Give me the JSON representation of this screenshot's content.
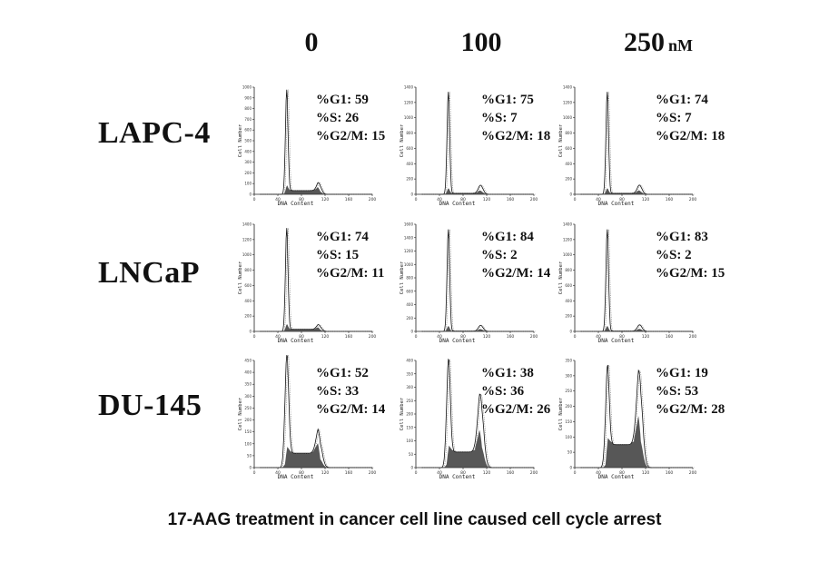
{
  "chart_data": {
    "type": "grid of histograms (flow cytometry DNA content)",
    "caption": "17-AAG treatment in cancer cell line caused cell cycle arrest",
    "columns": [
      {
        "dose": "0",
        "unit": ""
      },
      {
        "dose": "100",
        "unit": ""
      },
      {
        "dose": "250",
        "unit": "nM"
      }
    ],
    "xlabel": "DNA Content",
    "ylabel": "Cell Number",
    "rows": [
      {
        "cell_line": "LAPC-4",
        "panels": [
          {
            "G1": "59",
            "S": "26",
            "G2M": "15",
            "yticks": [
              "1000",
              "900",
              "800",
              "700",
              "600",
              "500",
              "400",
              "300",
              "200",
              "100",
              "0"
            ],
            "xticks": [
              "0",
              "40",
              "80",
              "120",
              "160",
              "200"
            ]
          },
          {
            "G1": "75",
            "S": "7",
            "G2M": "18",
            "yticks": [
              "1400",
              "1200",
              "1000",
              "800",
              "600",
              "400",
              "200",
              "0"
            ],
            "xticks": [
              "0",
              "40",
              "80",
              "120",
              "160",
              "200"
            ]
          },
          {
            "G1": "74",
            "S": "7",
            "G2M": "18",
            "yticks": [
              "1400",
              "1200",
              "1000",
              "800",
              "600",
              "400",
              "200",
              "0"
            ],
            "xticks": [
              "0",
              "40",
              "80",
              "120",
              "160",
              "200"
            ]
          }
        ]
      },
      {
        "cell_line": "LNCaP",
        "panels": [
          {
            "G1": "74",
            "S": "15",
            "G2M": "11",
            "yticks": [
              "1400",
              "1200",
              "1000",
              "800",
              "600",
              "400",
              "200",
              "0"
            ],
            "xticks": [
              "0",
              "40",
              "80",
              "120",
              "160",
              "200"
            ]
          },
          {
            "G1": "84",
            "S": "2",
            "G2M": "14",
            "yticks": [
              "1600",
              "1400",
              "1200",
              "1000",
              "800",
              "600",
              "400",
              "200",
              "0"
            ],
            "xticks": [
              "0",
              "40",
              "80",
              "120",
              "160",
              "200"
            ]
          },
          {
            "G1": "83",
            "S": "2",
            "G2M": "15",
            "yticks": [
              "1400",
              "1200",
              "1000",
              "800",
              "600",
              "400",
              "200",
              "0"
            ],
            "xticks": [
              "0",
              "40",
              "80",
              "120",
              "160",
              "200"
            ]
          }
        ]
      },
      {
        "cell_line": "DU-145",
        "panels": [
          {
            "G1": "52",
            "S": "33",
            "G2M": "14",
            "yticks": [
              "450",
              "400",
              "350",
              "300",
              "250",
              "200",
              "150",
              "100",
              "50",
              "0"
            ],
            "xticks": [
              "0",
              "40",
              "80",
              "120",
              "160",
              "200"
            ]
          },
          {
            "G1": "38",
            "S": "36",
            "G2M": "26",
            "yticks": [
              "400",
              "350",
              "300",
              "250",
              "200",
              "150",
              "100",
              "50",
              "0"
            ],
            "xticks": [
              "0",
              "40",
              "80",
              "120",
              "160",
              "200"
            ]
          },
          {
            "G1": "19",
            "S": "53",
            "G2M": "28",
            "yticks": [
              "350",
              "300",
              "250",
              "200",
              "150",
              "100",
              "50",
              "0"
            ],
            "xticks": [
              "0",
              "40",
              "80",
              "120",
              "160",
              "200"
            ]
          }
        ]
      }
    ],
    "stat_labels": {
      "G1": "%G1: ",
      "S": "%S: ",
      "G2M": "%G2/M: "
    }
  }
}
